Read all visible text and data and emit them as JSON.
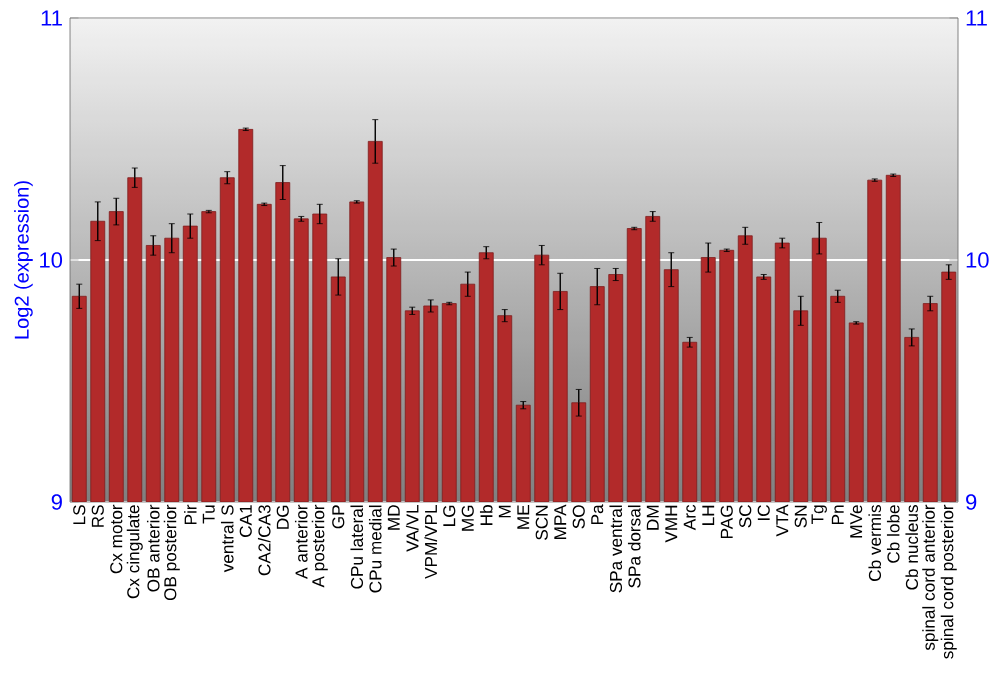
{
  "chart_data": {
    "type": "bar",
    "ylabel": "Log2 (expression)",
    "categories": [
      "LS",
      "RS",
      "Cx motor",
      "Cx cingulate",
      "OB anterior",
      "OB posterior",
      "Pir",
      "Tu",
      "ventral S",
      "CA1",
      "CA2/CA3",
      "DG",
      "A anterior",
      "A posterior",
      "GP",
      "CPu lateral",
      "CPu medial",
      "MD",
      "VA/VL",
      "VPM/VPL",
      "LG",
      "MG",
      "Hb",
      "M",
      "ME",
      "SCN",
      "MPA",
      "SO",
      "Pa",
      "SPa ventral",
      "SPa dorsal",
      "DM",
      "VMH",
      "Arc",
      "LH",
      "PAG",
      "SC",
      "IC",
      "VTA",
      "SN",
      "Tg",
      "Pn",
      "MVe",
      "Cb vermis",
      "Cb lobe",
      "Cb nucleus",
      "spinal cord anterior",
      "spinal cord posterior"
    ],
    "values": [
      9.85,
      10.16,
      10.2,
      10.34,
      10.06,
      10.09,
      10.14,
      10.2,
      10.34,
      10.54,
      10.23,
      10.32,
      10.17,
      10.19,
      9.93,
      10.24,
      10.49,
      10.01,
      9.79,
      9.81,
      9.82,
      9.9,
      10.03,
      9.77,
      9.4,
      10.02,
      9.87,
      9.41,
      9.89,
      9.94,
      10.13,
      10.18,
      9.96,
      9.66,
      10.01,
      10.04,
      10.1,
      9.93,
      10.07,
      9.79,
      10.09,
      9.85,
      9.74,
      10.33,
      10.35,
      9.68,
      9.82,
      9.95
    ],
    "errors": [
      0.05,
      0.08,
      0.055,
      0.04,
      0.04,
      0.06,
      0.05,
      0.005,
      0.025,
      0.005,
      0.005,
      0.07,
      0.01,
      0.04,
      0.075,
      0.005,
      0.09,
      0.035,
      0.015,
      0.025,
      0.005,
      0.05,
      0.025,
      0.025,
      0.015,
      0.04,
      0.075,
      0.055,
      0.075,
      0.025,
      0.005,
      0.02,
      0.07,
      0.02,
      0.06,
      0.005,
      0.035,
      0.01,
      0.02,
      0.06,
      0.065,
      0.025,
      0.005,
      0.005,
      0.005,
      0.035,
      0.03,
      0.03
    ],
    "color": "#b22a2a",
    "ylim": [
      9,
      11
    ],
    "yticks": [
      9,
      10,
      11
    ],
    "y2lim": [
      9,
      11
    ],
    "y2ticks": [
      9,
      10,
      11
    ],
    "grid": "y"
  }
}
